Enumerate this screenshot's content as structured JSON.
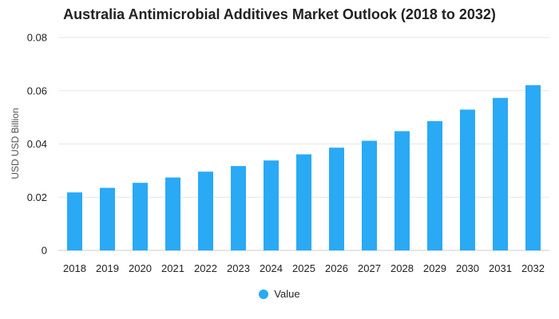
{
  "chart_data": {
    "type": "bar",
    "title": "Australia Antimicrobial Additives Market Outlook (2018 to 2032)",
    "xlabel": "",
    "ylabel": "USD USD Billion",
    "categories": [
      "2018",
      "2019",
      "2020",
      "2021",
      "2022",
      "2023",
      "2024",
      "2025",
      "2026",
      "2027",
      "2028",
      "2029",
      "2030",
      "2031",
      "2032"
    ],
    "series": [
      {
        "name": "Value",
        "color": "#2aa9f5",
        "values": [
          0.0218,
          0.0235,
          0.0254,
          0.0274,
          0.0296,
          0.0317,
          0.0338,
          0.0361,
          0.0386,
          0.0412,
          0.0448,
          0.0486,
          0.0529,
          0.0573,
          0.0621
        ]
      }
    ],
    "ylim": [
      0,
      0.08
    ],
    "yticks": [
      0,
      0.02,
      0.04,
      0.06,
      0.08
    ],
    "ytick_labels": [
      "0",
      "0.02",
      "0.04",
      "0.06",
      "0.08"
    ],
    "grid": true,
    "legend_position": "bottom"
  }
}
